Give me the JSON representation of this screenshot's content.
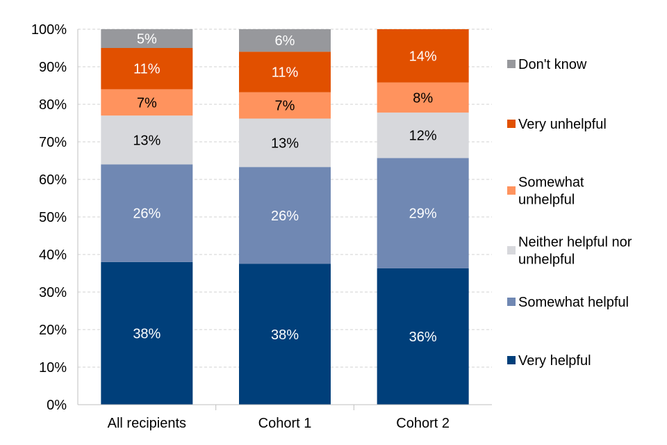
{
  "chart_data": {
    "type": "stacked-bar",
    "title": "",
    "xlabel": "",
    "ylabel": "",
    "ylim": [
      0,
      100
    ],
    "y_ticks": [
      "0%",
      "10%",
      "20%",
      "30%",
      "40%",
      "50%",
      "60%",
      "70%",
      "80%",
      "90%",
      "100%"
    ],
    "grid": true,
    "legend_position": "right",
    "categories": [
      "All recipients",
      "Cohort 1",
      "Cohort 2"
    ],
    "series": [
      {
        "name": "Very helpful",
        "color": "#003f7a",
        "label_color": "#ffffff",
        "values": [
          38,
          37.5,
          36.3
        ],
        "labels": [
          "38%",
          "38%",
          "36%"
        ]
      },
      {
        "name": "Somewhat helpful",
        "color": "#7088b3",
        "label_color": "#ffffff",
        "values": [
          26,
          25.8,
          29.4
        ],
        "labels": [
          "26%",
          "26%",
          "29%"
        ]
      },
      {
        "name": "Neither helpful nor unhelpful",
        "color": "#d7d8dc",
        "label_color": "#000000",
        "values": [
          13,
          12.9,
          12.1
        ],
        "labels": [
          "13%",
          "13%",
          "12%"
        ]
      },
      {
        "name": "Somewhat unhelpful",
        "color": "#ff935e",
        "label_color": "#000000",
        "values": [
          7,
          7,
          8
        ],
        "labels": [
          "7%",
          "7%",
          "8%"
        ]
      },
      {
        "name": "Very unhelpful",
        "color": "#e15000",
        "label_color": "#ffffff",
        "values": [
          11,
          10.8,
          14.2
        ],
        "labels": [
          "11%",
          "11%",
          "14%"
        ]
      },
      {
        "name": "Don't know",
        "color": "#97989c",
        "label_color": "#ffffff",
        "values": [
          5,
          6,
          0
        ],
        "labels": [
          "5%",
          "6%",
          ""
        ]
      }
    ],
    "legend": {
      "items": [
        {
          "name": "Don't know",
          "lines": [
            "Don't know"
          ],
          "color": "#97989c"
        },
        {
          "name": "Very unhelpful",
          "lines": [
            "Very unhelpful"
          ],
          "color": "#e15000"
        },
        {
          "name": "Somewhat unhelpful",
          "lines": [
            "Somewhat",
            "unhelpful"
          ],
          "color": "#ff935e"
        },
        {
          "name": "Neither helpful nor unhelpful",
          "lines": [
            "Neither helpful nor",
            "unhelpful"
          ],
          "color": "#d7d8dc"
        },
        {
          "name": "Somewhat helpful",
          "lines": [
            "Somewhat helpful"
          ],
          "color": "#7088b3"
        },
        {
          "name": "Very helpful",
          "lines": [
            "Very helpful"
          ],
          "color": "#003f7a"
        }
      ]
    }
  }
}
